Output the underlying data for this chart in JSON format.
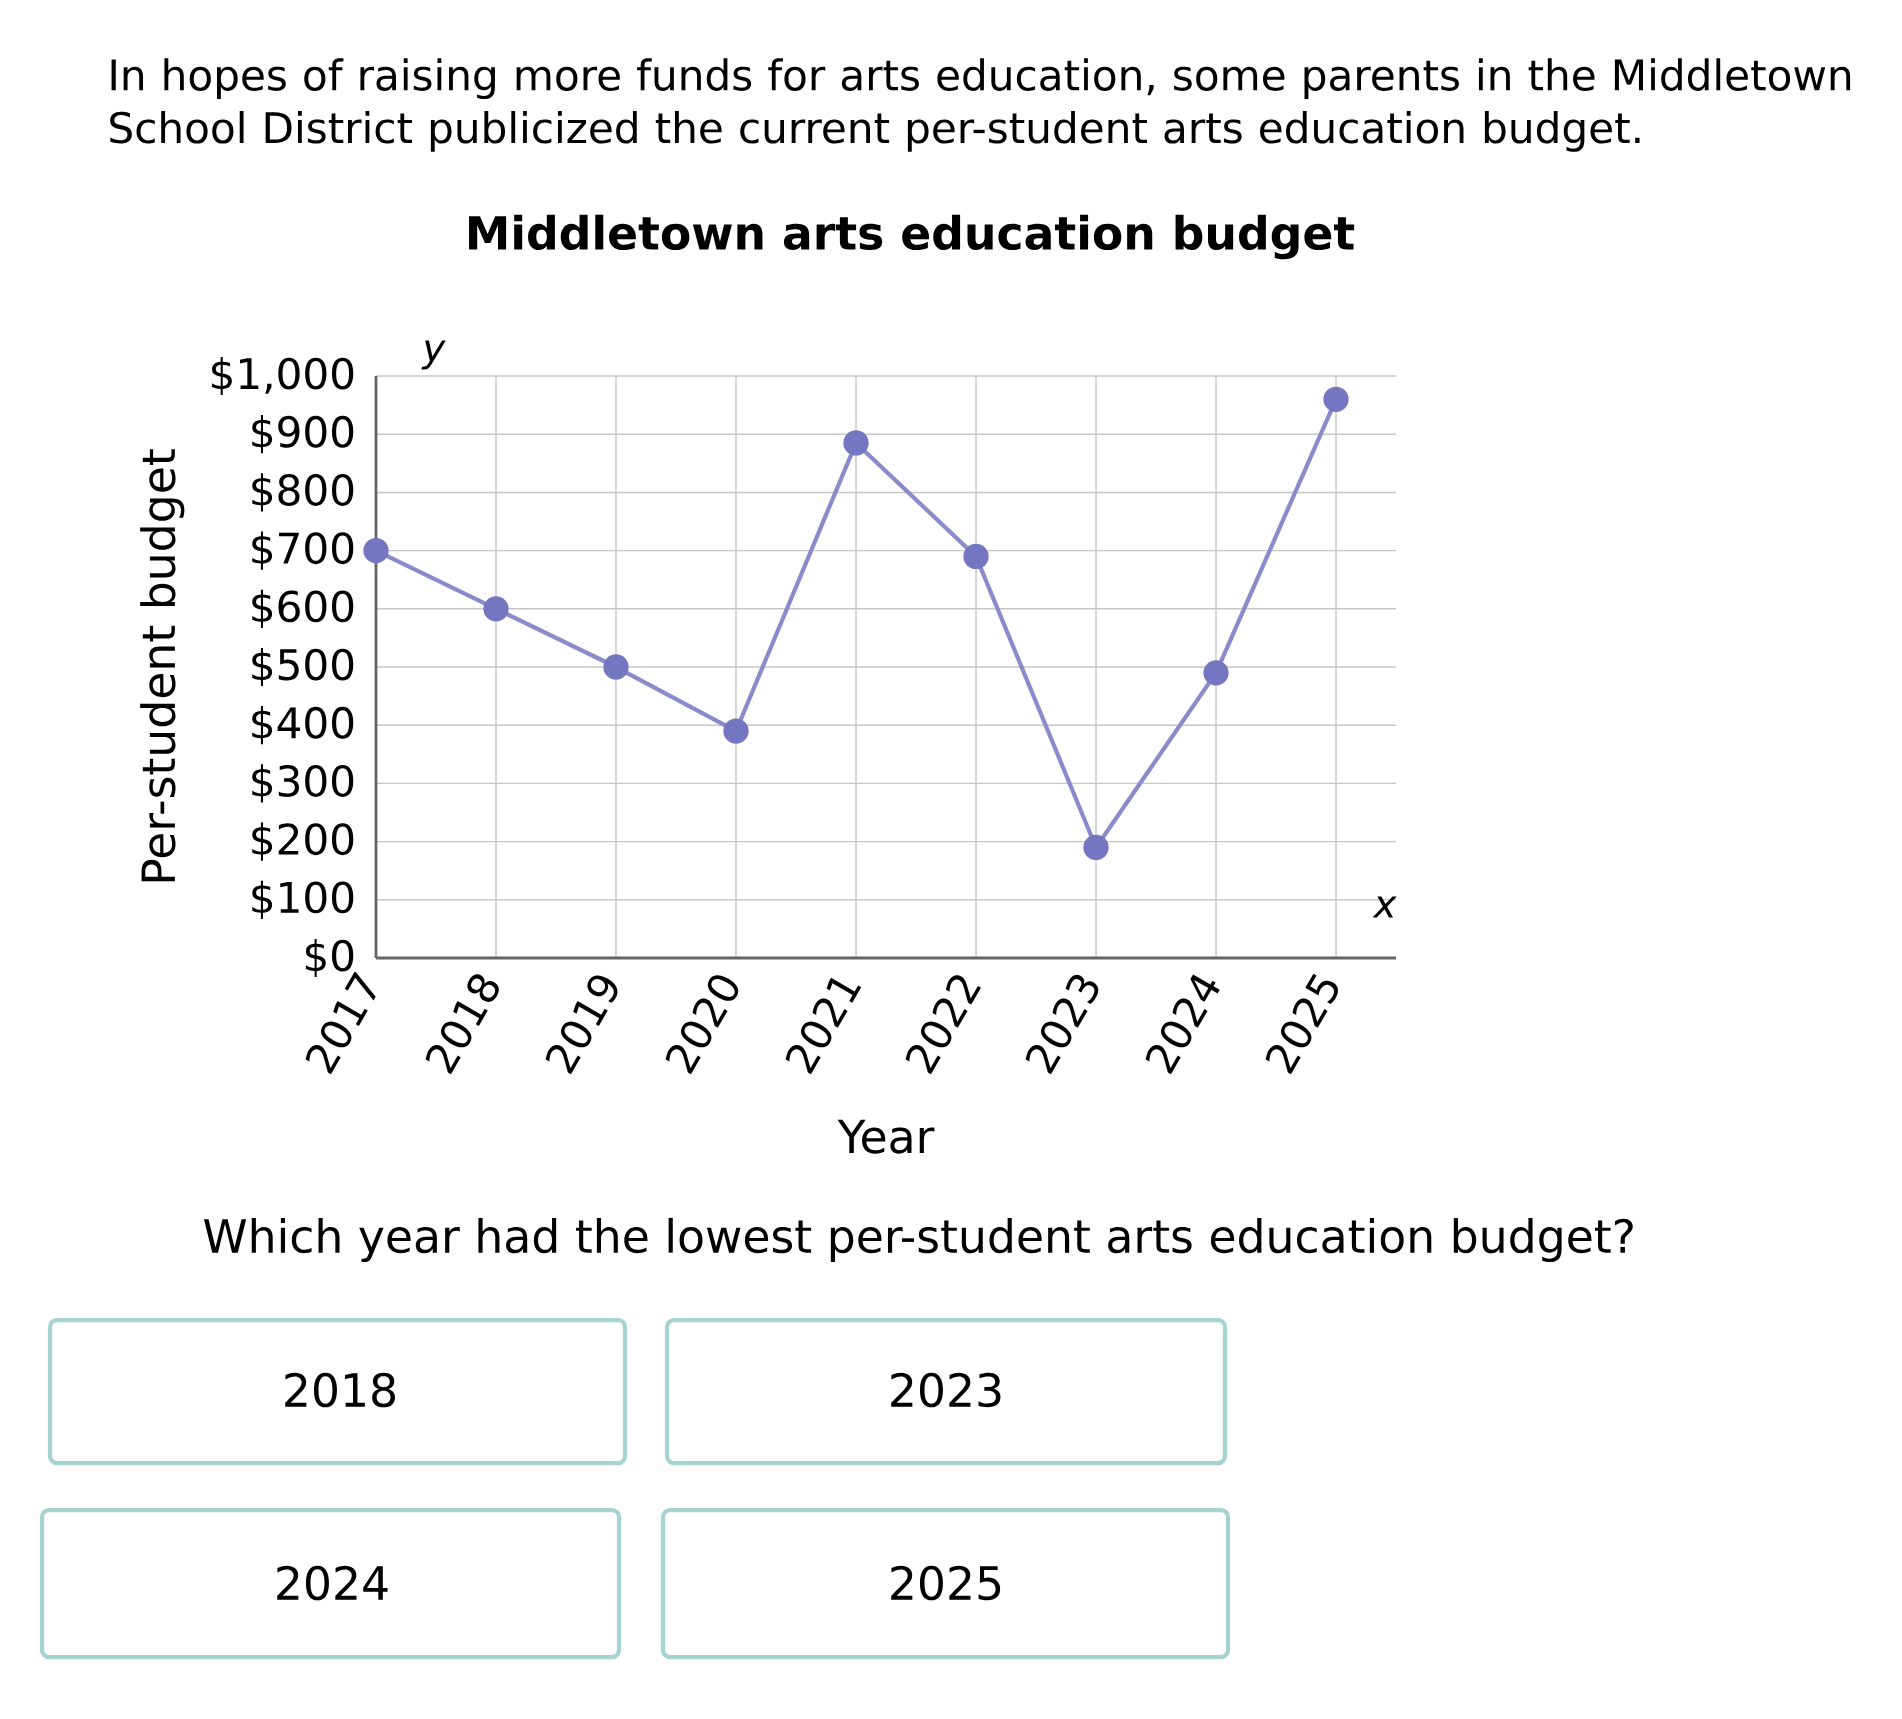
{
  "chart_data": {
    "type": "line",
    "title": "Middletown arts education budget",
    "xlabel": "Year",
    "ylabel": "Per-student budget",
    "categories": [
      "2017",
      "2018",
      "2019",
      "2020",
      "2021",
      "2022",
      "2023",
      "2024",
      "2025"
    ],
    "values": [
      700,
      600,
      500,
      390,
      885,
      690,
      190,
      490,
      960
    ],
    "color": "#7476c2",
    "ylim": [
      0,
      1000
    ],
    "yticks": [
      {
        "value": 0,
        "label": "$0"
      },
      {
        "value": 100,
        "label": "$100"
      },
      {
        "value": 200,
        "label": "$200"
      },
      {
        "value": 300,
        "label": "$300"
      },
      {
        "value": 400,
        "label": "$400"
      },
      {
        "value": 500,
        "label": "$500"
      },
      {
        "value": 600,
        "label": "$600"
      },
      {
        "value": 700,
        "label": "$700"
      },
      {
        "value": 800,
        "label": "$800"
      },
      {
        "value": 900,
        "label": "$900"
      },
      {
        "value": 1000,
        "label": "$1,000"
      }
    ],
    "grid": true,
    "marker": "circle",
    "line_style": "solid",
    "annotations": [
      "In hopes of raising more funds for arts education, some parents in the Middletown School District publicized the current per-student arts education budget.",
      "y",
      "x",
      "Which year had the lowest per-student arts education budget?",
      "2018",
      "2023",
      "2024",
      "2025"
    ]
  }
}
